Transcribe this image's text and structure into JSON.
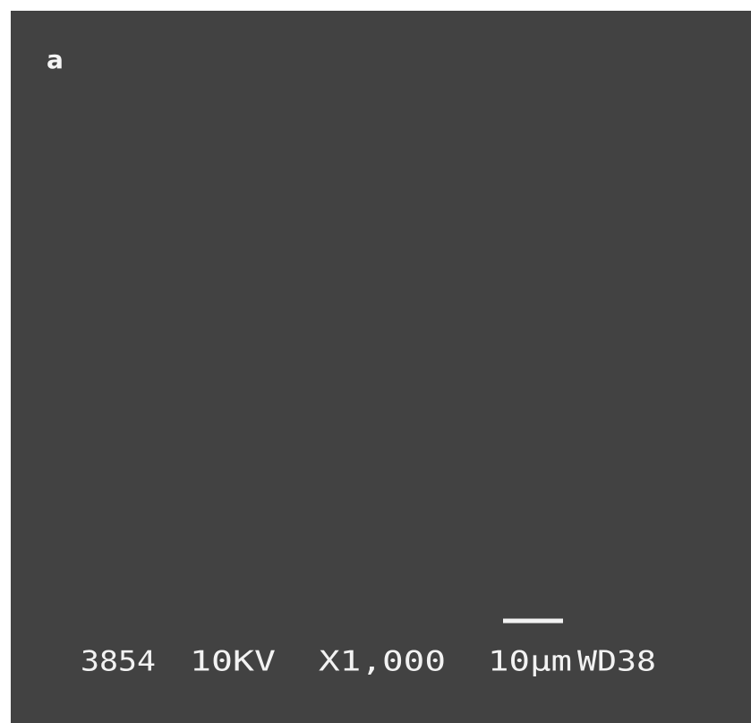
{
  "panel_label": "a",
  "info_bar": {
    "micrograph_number": "3854",
    "voltage": "10KV",
    "magnification": "X1,000",
    "scale": "10µm",
    "working_distance": "WD38"
  }
}
